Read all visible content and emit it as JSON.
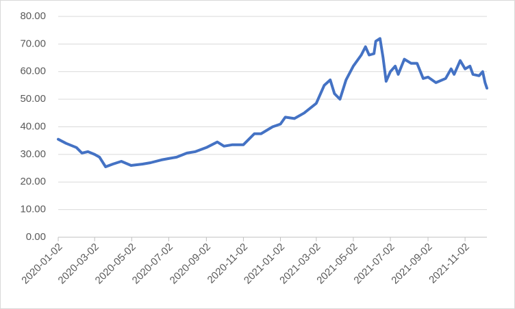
{
  "chart_data": {
    "type": "line",
    "color": "#4472c4",
    "grid": true,
    "x": [
      "2020-01-02",
      "2020-01-15",
      "2020-02-01",
      "2020-02-10",
      "2020-02-20",
      "2020-03-02",
      "2020-03-10",
      "2020-03-20",
      "2020-04-01",
      "2020-04-15",
      "2020-05-01",
      "2020-05-20",
      "2020-06-02",
      "2020-06-20",
      "2020-07-02",
      "2020-07-15",
      "2020-08-01",
      "2020-08-15",
      "2020-09-02",
      "2020-09-20",
      "2020-10-01",
      "2020-10-15",
      "2020-11-02",
      "2020-11-20",
      "2020-12-01",
      "2020-12-20",
      "2021-01-02",
      "2021-01-10",
      "2021-01-25",
      "2021-02-10",
      "2021-03-02",
      "2021-03-15",
      "2021-03-25",
      "2021-04-01",
      "2021-04-10",
      "2021-04-20",
      "2021-05-02",
      "2021-05-15",
      "2021-05-22",
      "2021-05-28",
      "2021-06-05",
      "2021-06-08",
      "2021-06-15",
      "2021-06-20",
      "2021-06-25",
      "2021-07-02",
      "2021-07-10",
      "2021-07-15",
      "2021-07-25",
      "2021-08-05",
      "2021-08-15",
      "2021-08-25",
      "2021-09-02",
      "2021-09-15",
      "2021-10-01",
      "2021-10-10",
      "2021-10-15",
      "2021-10-25",
      "2021-11-02",
      "2021-11-10",
      "2021-11-15",
      "2021-11-25",
      "2021-12-01",
      "2021-12-05",
      "2021-12-08"
    ],
    "values": [
      35.5,
      34,
      32.5,
      30.5,
      31,
      30,
      29,
      25.5,
      26.5,
      27.5,
      26,
      26.5,
      27,
      28,
      28.5,
      29,
      30.5,
      31,
      32.5,
      34.5,
      33,
      33.5,
      33.5,
      37.5,
      37.5,
      40,
      41,
      43.5,
      43,
      45,
      48.5,
      55,
      57,
      52,
      50,
      57,
      62,
      66,
      69,
      66,
      66.5,
      71,
      72,
      65,
      56.5,
      60,
      62,
      59,
      64.5,
      63,
      63,
      57.5,
      58,
      56,
      57.5,
      61,
      59,
      64,
      61,
      62,
      59,
      58.5,
      60,
      56,
      54
    ],
    "xlim": [
      "2020-01-02",
      "2021-12-08"
    ],
    "xticks": [
      "2020-01-02",
      "2020-03-02",
      "2020-05-02",
      "2020-07-02",
      "2020-09-02",
      "2020-11-02",
      "2021-01-02",
      "2021-03-02",
      "2021-05-02",
      "2021-07-02",
      "2021-09-02",
      "2021-11-02"
    ],
    "ylim": [
      0,
      80
    ],
    "yticks": [
      {
        "value": 0,
        "label": "0.00"
      },
      {
        "value": 10,
        "label": "10.00"
      },
      {
        "value": 20,
        "label": "20.00"
      },
      {
        "value": 30,
        "label": "30.00"
      },
      {
        "value": 40,
        "label": "40.00"
      },
      {
        "value": 50,
        "label": "50.00"
      },
      {
        "value": 60,
        "label": "60.00"
      },
      {
        "value": 70,
        "label": "70.00"
      },
      {
        "value": 80,
        "label": "80.00"
      }
    ]
  }
}
